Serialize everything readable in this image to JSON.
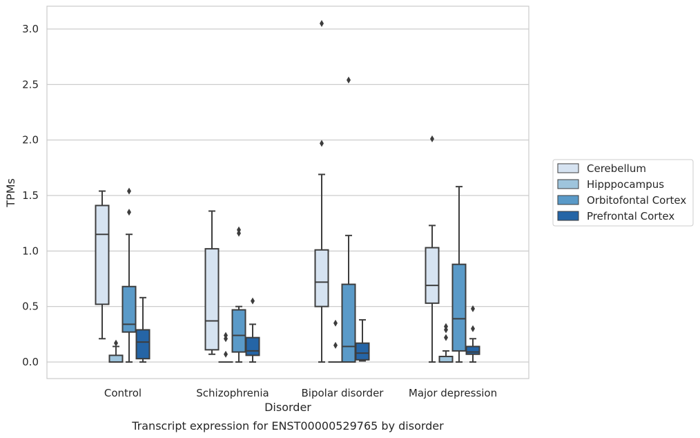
{
  "chart_data": {
    "type": "box",
    "title": "",
    "caption": "Transcript expression for ENST00000529765 by disorder",
    "xlabel": "Disorder",
    "ylabel": "TPMs",
    "ylim": [
      -0.15,
      3.2
    ],
    "yticks": [
      0.0,
      0.5,
      1.0,
      1.5,
      2.0,
      2.5,
      3.0
    ],
    "ytick_labels": [
      "0.0",
      "0.5",
      "1.0",
      "1.5",
      "2.0",
      "2.5",
      "3.0"
    ],
    "grid": "horizontal",
    "legend_position": "right",
    "categories": [
      "Control",
      "Schizophrenia",
      "Bipolar disorder",
      "Major depression"
    ],
    "series": [
      {
        "name": "Cerebellum",
        "color": "#d6e3f1",
        "boxes": [
          {
            "whisker_low": 0.21,
            "q1": 0.52,
            "median": 1.15,
            "q3": 1.41,
            "whisker_high": 1.54,
            "outliers": []
          },
          {
            "whisker_low": 0.07,
            "q1": 0.11,
            "median": 0.37,
            "q3": 1.02,
            "whisker_high": 1.36,
            "outliers": []
          },
          {
            "whisker_low": 0.0,
            "q1": 0.5,
            "median": 0.72,
            "q3": 1.01,
            "whisker_high": 1.69,
            "outliers": [
              1.97,
              3.05
            ]
          },
          {
            "whisker_low": 0.0,
            "q1": 0.53,
            "median": 0.69,
            "q3": 1.03,
            "whisker_high": 1.23,
            "outliers": [
              2.01
            ]
          }
        ]
      },
      {
        "name": "Hipppocampus",
        "color": "#9ec4dc",
        "boxes": [
          {
            "whisker_low": 0.0,
            "q1": 0.0,
            "median": 0.0,
            "q3": 0.06,
            "whisker_high": 0.14,
            "outliers": [
              0.17
            ]
          },
          {
            "whisker_low": 0.0,
            "q1": 0.0,
            "median": 0.0,
            "q3": 0.0,
            "whisker_high": 0.0,
            "outliers": [
              0.07,
              0.21,
              0.24
            ]
          },
          {
            "whisker_low": 0.0,
            "q1": 0.0,
            "median": 0.0,
            "q3": 0.0,
            "whisker_high": 0.0,
            "outliers": [
              0.15,
              0.35
            ]
          },
          {
            "whisker_low": 0.0,
            "q1": 0.0,
            "median": 0.0,
            "q3": 0.05,
            "whisker_high": 0.1,
            "outliers": [
              0.22,
              0.29,
              0.32
            ]
          }
        ]
      },
      {
        "name": "Orbitofontal Cortex",
        "color": "#5a9ac8",
        "boxes": [
          {
            "whisker_low": 0.0,
            "q1": 0.27,
            "median": 0.34,
            "q3": 0.68,
            "whisker_high": 1.15,
            "outliers": [
              1.35,
              1.54
            ]
          },
          {
            "whisker_low": 0.0,
            "q1": 0.09,
            "median": 0.24,
            "q3": 0.47,
            "whisker_high": 0.5,
            "outliers": [
              1.16,
              1.19
            ]
          },
          {
            "whisker_low": 0.0,
            "q1": 0.0,
            "median": 0.14,
            "q3": 0.7,
            "whisker_high": 1.14,
            "outliers": [
              2.54
            ]
          },
          {
            "whisker_low": 0.0,
            "q1": 0.1,
            "median": 0.39,
            "q3": 0.88,
            "whisker_high": 1.58,
            "outliers": []
          }
        ]
      },
      {
        "name": "Prefrontal Cortex",
        "color": "#2565a6",
        "boxes": [
          {
            "whisker_low": 0.0,
            "q1": 0.03,
            "median": 0.18,
            "q3": 0.29,
            "whisker_high": 0.58,
            "outliers": []
          },
          {
            "whisker_low": 0.0,
            "q1": 0.06,
            "median": 0.1,
            "q3": 0.22,
            "whisker_high": 0.34,
            "outliers": [
              0.55
            ]
          },
          {
            "whisker_low": 0.01,
            "q1": 0.02,
            "median": 0.08,
            "q3": 0.17,
            "whisker_high": 0.38,
            "outliers": []
          },
          {
            "whisker_low": 0.0,
            "q1": 0.07,
            "median": 0.09,
            "q3": 0.14,
            "whisker_high": 0.21,
            "outliers": [
              0.3,
              0.48
            ]
          }
        ]
      }
    ]
  }
}
